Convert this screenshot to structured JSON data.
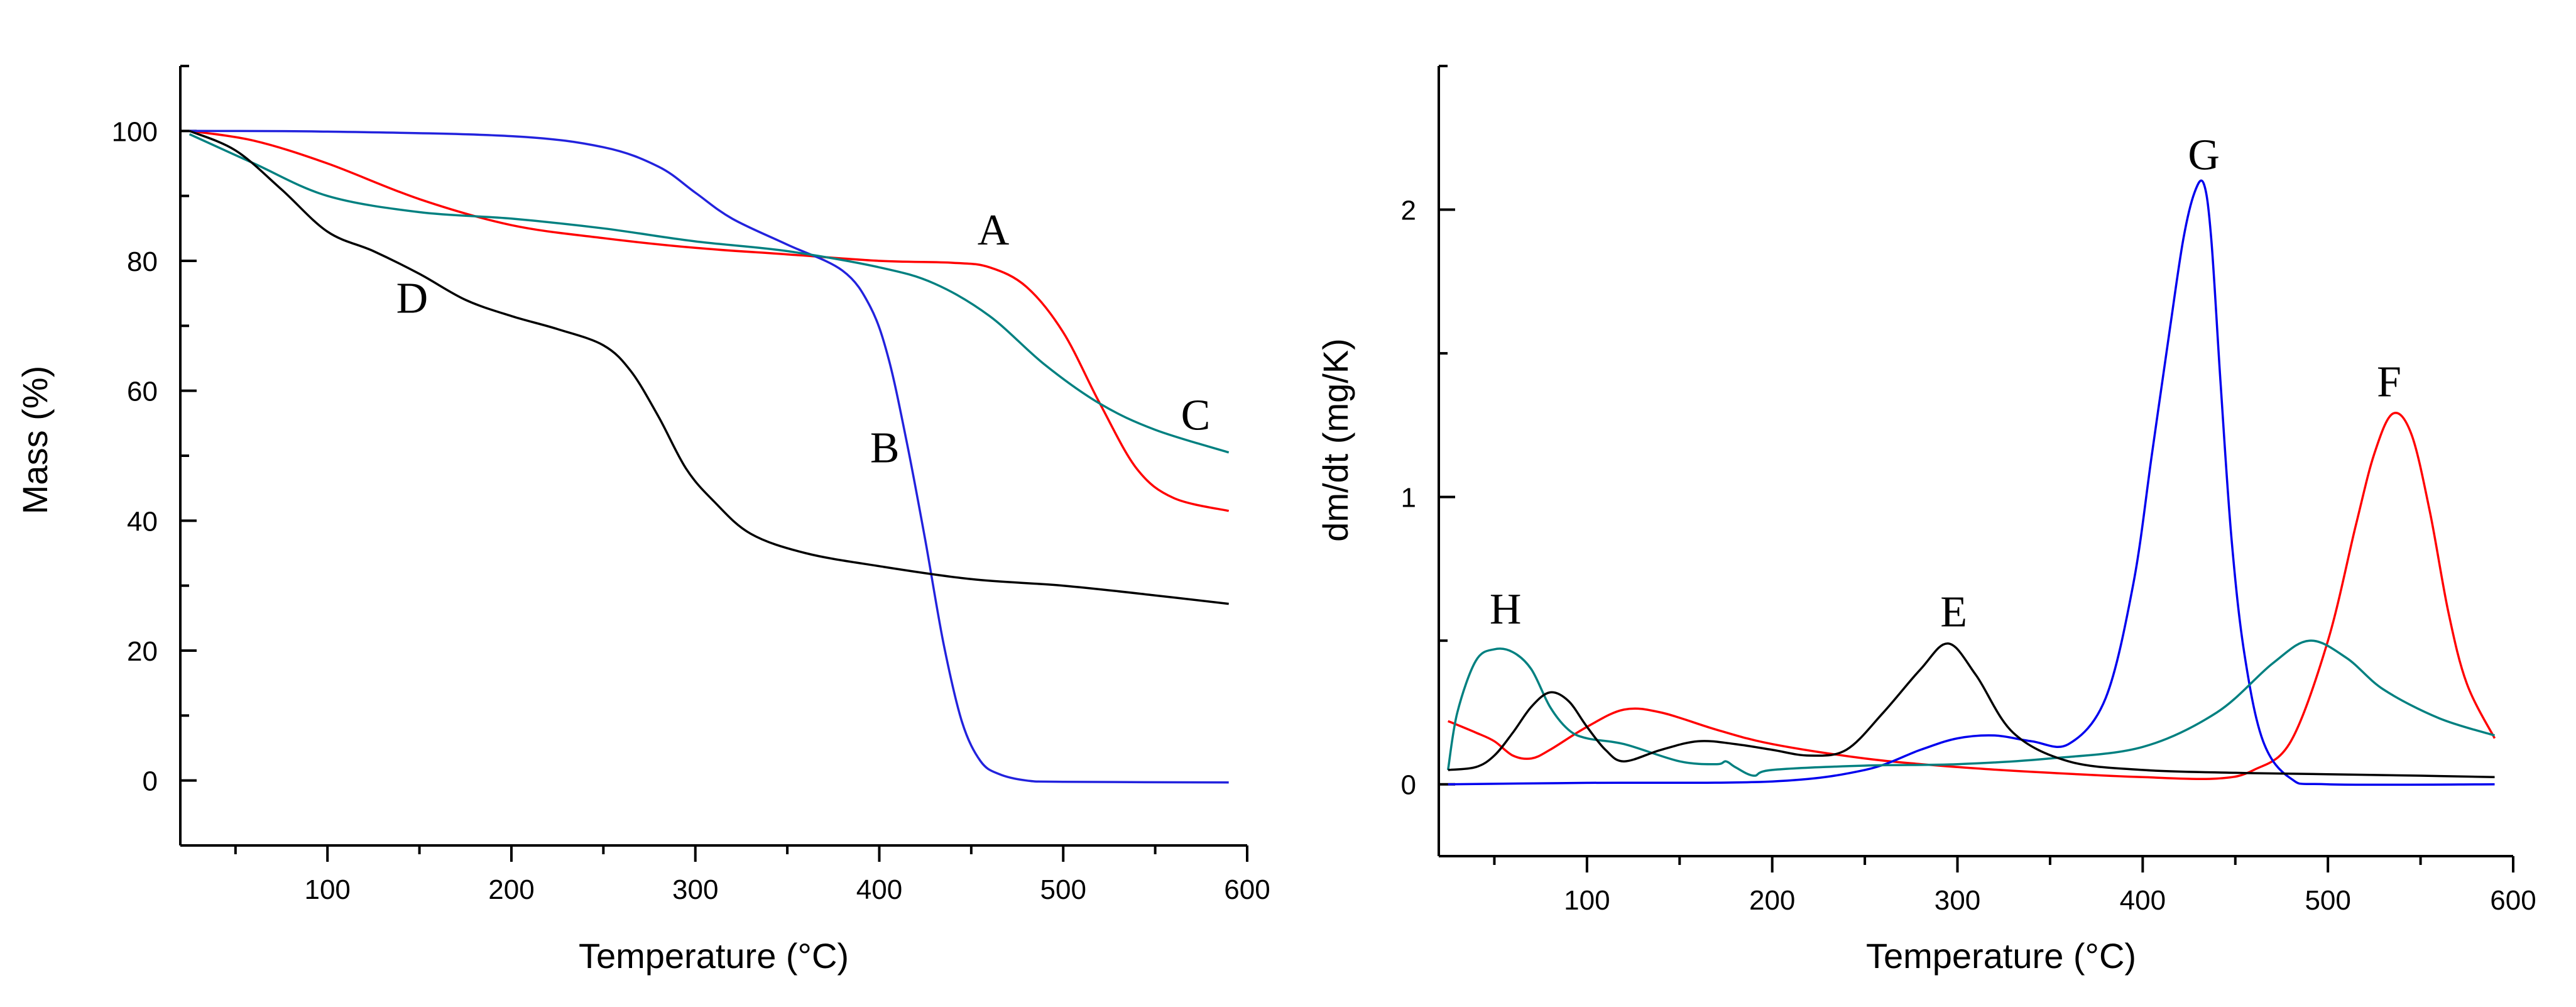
{
  "chart_data": [
    {
      "type": "line",
      "title": "",
      "xlabel": "Temperature (°C)",
      "ylabel": "Mass (%)",
      "xlim": [
        20,
        600
      ],
      "ylim": [
        -10,
        110
      ],
      "xticks": [
        100,
        200,
        300,
        400,
        500,
        600
      ],
      "yticks": [
        0,
        20,
        40,
        60,
        80,
        100
      ],
      "xtick_labels": [
        "100",
        "200",
        "300",
        "400",
        "500",
        "600"
      ],
      "ytick_labels": [
        "0",
        "20",
        "40",
        "60",
        "80",
        "100"
      ],
      "x_minor_step": 50,
      "y_minor_step": 10,
      "series": [
        {
          "name": "A",
          "color": "#ff0000",
          "x": [
            25,
            60,
            100,
            150,
            200,
            250,
            300,
            350,
            400,
            440,
            460,
            480,
            500,
            520,
            540,
            560,
            590
          ],
          "y": [
            100,
            98.5,
            95,
            89.5,
            85.5,
            83.5,
            82,
            81,
            80,
            79.7,
            79,
            76,
            69,
            58,
            48,
            43.5,
            41.5
          ]
        },
        {
          "name": "B",
          "color": "#2222dd",
          "x": [
            25,
            100,
            200,
            250,
            280,
            300,
            320,
            350,
            380,
            395,
            405,
            415,
            425,
            435,
            445,
            455,
            465,
            480,
            500,
            590
          ],
          "y": [
            100,
            99.9,
            99.2,
            97.5,
            94.5,
            90.5,
            86.5,
            82.5,
            78.5,
            73,
            65,
            52,
            37,
            21,
            9,
            3,
            1,
            0,
            -0.2,
            -0.3
          ]
        },
        {
          "name": "C",
          "color": "#008080",
          "x": [
            25,
            60,
            100,
            150,
            200,
            250,
            300,
            350,
            400,
            430,
            460,
            490,
            520,
            550,
            590
          ],
          "y": [
            99.5,
            95,
            90,
            87.5,
            86.5,
            85,
            83,
            81.5,
            79,
            76.5,
            71.5,
            64,
            58,
            54,
            50.5
          ]
        },
        {
          "name": "D",
          "color": "#000000",
          "x": [
            25,
            50,
            75,
            100,
            125,
            150,
            175,
            200,
            225,
            250,
            265,
            280,
            295,
            310,
            330,
            360,
            400,
            450,
            500,
            550,
            590
          ],
          "y": [
            100,
            97,
            91,
            84.5,
            81.5,
            78,
            74,
            71.5,
            69.5,
            67,
            63,
            56,
            48,
            43,
            38,
            35,
            33,
            31,
            30,
            28.5,
            27.2
          ]
        }
      ],
      "annotations": [
        {
          "text": "A",
          "x": 462,
          "y": 82.5
        },
        {
          "text": "B",
          "x": 403,
          "y": 49
        },
        {
          "text": "C",
          "x": 572,
          "y": 54
        },
        {
          "text": "D",
          "x": 146,
          "y": 72
        }
      ]
    },
    {
      "type": "line",
      "title": "",
      "xlabel": "Temperature (°C)",
      "ylabel": "dm/dt (mg/K)",
      "xlim": [
        20,
        600
      ],
      "ylim": [
        -0.25,
        2.5
      ],
      "xticks": [
        100,
        200,
        300,
        400,
        500,
        600
      ],
      "yticks": [
        0,
        1,
        2
      ],
      "xtick_labels": [
        "100",
        "200",
        "300",
        "400",
        "500",
        "600"
      ],
      "ytick_labels": [
        "0",
        "1",
        "2"
      ],
      "x_minor_step": 50,
      "y_minor_step": 0.5,
      "series": [
        {
          "name": "F",
          "color": "#ff0000",
          "x": [
            25,
            40,
            50,
            60,
            70,
            80,
            100,
            120,
            140,
            170,
            200,
            250,
            300,
            350,
            400,
            440,
            460,
            480,
            500,
            515,
            525,
            535,
            545,
            555,
            565,
            575,
            590
          ],
          "y": [
            0.22,
            0.18,
            0.15,
            0.1,
            0.09,
            0.12,
            0.2,
            0.26,
            0.25,
            0.19,
            0.14,
            0.09,
            0.06,
            0.04,
            0.025,
            0.02,
            0.05,
            0.15,
            0.5,
            0.9,
            1.15,
            1.29,
            1.22,
            0.95,
            0.6,
            0.35,
            0.16
          ]
        },
        {
          "name": "G",
          "color": "#0000ee",
          "x": [
            25,
            100,
            200,
            250,
            280,
            300,
            320,
            340,
            360,
            380,
            395,
            405,
            415,
            422,
            428,
            433,
            437,
            442,
            448,
            455,
            465,
            480,
            500,
            590
          ],
          "y": [
            0,
            0.005,
            0.01,
            0.05,
            0.12,
            0.16,
            0.17,
            0.15,
            0.14,
            0.3,
            0.7,
            1.15,
            1.6,
            1.9,
            2.06,
            2.09,
            1.9,
            1.4,
            0.85,
            0.45,
            0.15,
            0.02,
            0,
            0
          ]
        },
        {
          "name": "H",
          "color": "#008080",
          "x": [
            25,
            30,
            40,
            50,
            60,
            70,
            80,
            90,
            100,
            120,
            150,
            170,
            175,
            180,
            190,
            200,
            250,
            300,
            350,
            400,
            440,
            470,
            490,
            510,
            530,
            560,
            590
          ],
          "y": [
            0.05,
            0.25,
            0.43,
            0.47,
            0.46,
            0.4,
            0.27,
            0.19,
            0.16,
            0.14,
            0.08,
            0.07,
            0.08,
            0.06,
            0.03,
            0.05,
            0.065,
            0.07,
            0.09,
            0.13,
            0.25,
            0.42,
            0.5,
            0.44,
            0.33,
            0.23,
            0.17
          ]
        },
        {
          "name": "E",
          "color": "#000000",
          "x": [
            25,
            40,
            50,
            60,
            70,
            80,
            90,
            100,
            110,
            120,
            140,
            160,
            180,
            200,
            220,
            240,
            260,
            280,
            295,
            310,
            330,
            360,
            400,
            450,
            500,
            550,
            590
          ],
          "y": [
            0.05,
            0.06,
            0.1,
            0.18,
            0.27,
            0.32,
            0.29,
            0.2,
            0.12,
            0.08,
            0.12,
            0.15,
            0.14,
            0.12,
            0.1,
            0.12,
            0.25,
            0.4,
            0.49,
            0.38,
            0.18,
            0.08,
            0.05,
            0.04,
            0.035,
            0.03,
            0.025
          ]
        }
      ],
      "annotations": [
        {
          "text": "E",
          "x": 298,
          "y": 0.55
        },
        {
          "text": "F",
          "x": 533,
          "y": 1.35
        },
        {
          "text": "G",
          "x": 433,
          "y": 2.14
        },
        {
          "text": "H",
          "x": 56,
          "y": 0.56
        }
      ]
    }
  ]
}
